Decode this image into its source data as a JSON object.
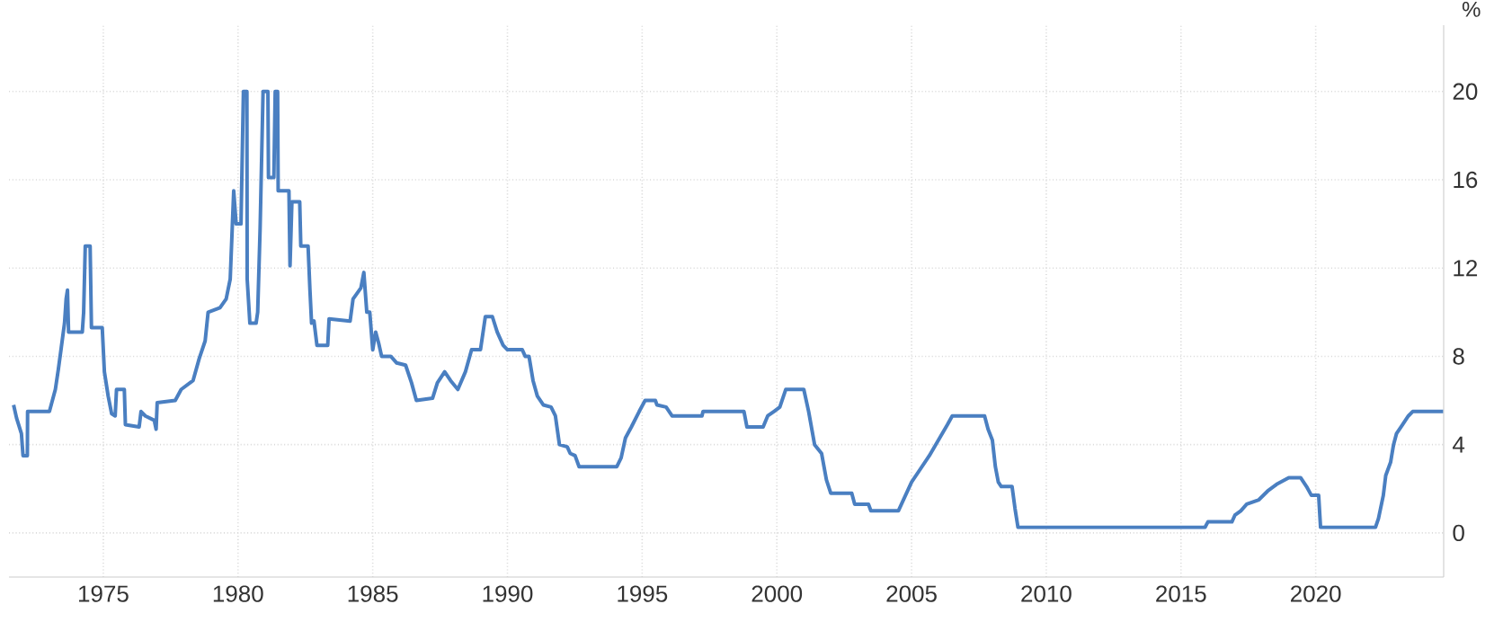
{
  "chart_data": {
    "type": "line",
    "ylabel": "%",
    "xlim": [
      1971.5,
      2024.75
    ],
    "ylim": [
      -2,
      23
    ],
    "xticks": [
      1975,
      1980,
      1985,
      1990,
      1995,
      2000,
      2005,
      2010,
      2015,
      2020
    ],
    "yticks": [
      0,
      4,
      8,
      12,
      16,
      20
    ],
    "grid": true,
    "marker": "none",
    "line_style": "solid",
    "series": [
      {
        "color": "#4a7fc1",
        "x": [
          1971.67,
          1971.78,
          1971.96,
          1972.02,
          1972.18,
          1972.19,
          1973.0,
          1973.22,
          1973.33,
          1973.44,
          1973.56,
          1973.62,
          1973.67,
          1973.71,
          1974.22,
          1974.27,
          1974.33,
          1974.51,
          1974.56,
          1974.96,
          1975.04,
          1975.18,
          1975.31,
          1975.44,
          1975.49,
          1975.78,
          1975.82,
          1976.33,
          1976.4,
          1976.56,
          1976.89,
          1976.96,
          1977.0,
          1977.67,
          1977.89,
          1978.33,
          1978.56,
          1978.78,
          1978.89,
          1979.33,
          1979.56,
          1979.71,
          1979.84,
          1979.93,
          1980.11,
          1980.2,
          1980.33,
          1980.34,
          1980.44,
          1980.67,
          1980.73,
          1980.82,
          1980.93,
          1981.11,
          1981.13,
          1981.33,
          1981.38,
          1981.47,
          1981.49,
          1981.89,
          1981.93,
          1982.0,
          1982.29,
          1982.33,
          1982.6,
          1982.67,
          1982.73,
          1982.82,
          1982.93,
          1983.33,
          1983.38,
          1984.16,
          1984.27,
          1984.56,
          1984.67,
          1984.78,
          1984.89,
          1985.0,
          1985.11,
          1985.22,
          1985.33,
          1985.67,
          1985.89,
          1986.22,
          1986.44,
          1986.62,
          1987.22,
          1987.4,
          1987.67,
          1987.89,
          1988.16,
          1988.44,
          1988.67,
          1989.0,
          1989.18,
          1989.44,
          1989.62,
          1989.84,
          1990.0,
          1990.55,
          1990.66,
          1990.8,
          1990.95,
          1991.11,
          1991.33,
          1991.62,
          1991.78,
          1991.93,
          1992.22,
          1992.33,
          1992.51,
          1992.66,
          1994.06,
          1994.22,
          1994.38,
          1994.6,
          1994.89,
          1995.11,
          1995.49,
          1995.55,
          1995.89,
          1996.11,
          1997.22,
          1997.26,
          1998.78,
          1998.89,
          1999.49,
          1999.66,
          1999.89,
          2000.11,
          2000.33,
          2001.0,
          2001.18,
          2001.4,
          2001.66,
          2001.84,
          2002.0,
          2002.78,
          2002.89,
          2003.4,
          2003.49,
          2004.51,
          2005.0,
          2005.66,
          2006.33,
          2006.51,
          2007.71,
          2007.84,
          2008.0,
          2008.11,
          2008.22,
          2008.33,
          2008.73,
          2008.84,
          2008.95,
          2015.89,
          2016.0,
          2016.89,
          2017.0,
          2017.22,
          2017.44,
          2017.89,
          2018.22,
          2018.55,
          2019.0,
          2019.44,
          2019.66,
          2019.84,
          2020.11,
          2020.18,
          2022.22,
          2022.33,
          2022.51,
          2022.6,
          2022.78,
          2022.89,
          2023.0,
          2023.22,
          2023.44,
          2023.6,
          2024.73
        ],
        "values": [
          5.8,
          5.2,
          4.5,
          3.5,
          3.5,
          5.5,
          5.5,
          6.5,
          7.4,
          8.4,
          9.5,
          10.6,
          11.0,
          9.1,
          9.1,
          10.0,
          13.0,
          13.0,
          9.3,
          9.3,
          7.3,
          6.2,
          5.4,
          5.3,
          6.5,
          6.5,
          4.9,
          4.8,
          5.5,
          5.3,
          5.1,
          4.7,
          5.9,
          6.0,
          6.5,
          6.9,
          7.9,
          8.7,
          10.0,
          10.2,
          10.6,
          11.5,
          15.5,
          14.0,
          14.0,
          20.0,
          20.0,
          11.5,
          9.5,
          9.5,
          10.0,
          13.8,
          20.0,
          20.0,
          16.1,
          16.1,
          20.0,
          20.0,
          15.5,
          15.5,
          12.1,
          15.0,
          15.0,
          13.0,
          13.0,
          11.0,
          9.5,
          9.6,
          8.5,
          8.5,
          9.7,
          9.6,
          10.6,
          11.1,
          11.8,
          10.0,
          10.0,
          8.3,
          9.1,
          8.6,
          8.0,
          8.0,
          7.7,
          7.6,
          6.8,
          6.0,
          6.1,
          6.8,
          7.3,
          6.9,
          6.5,
          7.3,
          8.3,
          8.3,
          9.8,
          9.8,
          9.1,
          8.5,
          8.3,
          8.3,
          8.0,
          8.0,
          6.9,
          6.2,
          5.8,
          5.7,
          5.3,
          4.0,
          3.9,
          3.6,
          3.5,
          3.0,
          3.0,
          3.4,
          4.3,
          4.8,
          5.5,
          6.0,
          6.0,
          5.8,
          5.7,
          5.3,
          5.3,
          5.5,
          5.5,
          4.8,
          4.8,
          5.3,
          5.5,
          5.7,
          6.5,
          6.5,
          5.5,
          4.0,
          3.6,
          2.4,
          1.8,
          1.8,
          1.3,
          1.3,
          1.0,
          1.0,
          2.3,
          3.5,
          4.9,
          5.3,
          5.3,
          4.7,
          4.2,
          3.0,
          2.3,
          2.1,
          2.1,
          1.1,
          0.25,
          0.25,
          0.5,
          0.5,
          0.8,
          1.0,
          1.3,
          1.5,
          1.9,
          2.2,
          2.5,
          2.5,
          2.1,
          1.7,
          1.7,
          0.25,
          0.25,
          0.65,
          1.7,
          2.6,
          3.2,
          4.0,
          4.5,
          4.9,
          5.3,
          5.5,
          5.5
        ]
      }
    ]
  }
}
